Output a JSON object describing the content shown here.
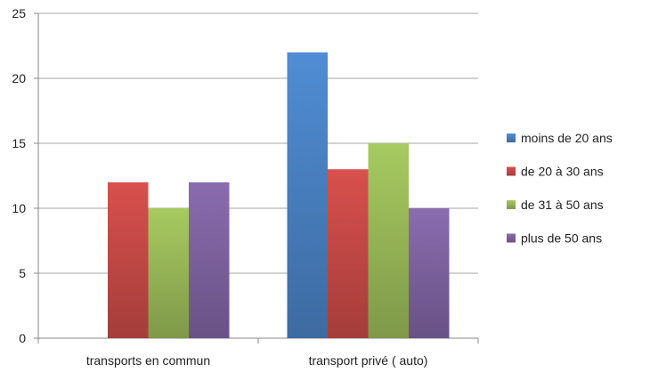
{
  "chart_data": {
    "type": "bar",
    "categories": [
      "transports en commun",
      "transport privé ( auto)"
    ],
    "series": [
      {
        "name": "moins de 20 ans",
        "color": "#4a83c4",
        "values": [
          0,
          22
        ]
      },
      {
        "name": "de 20 à 30 ans",
        "color": "#c84a47",
        "values": [
          12,
          13
        ]
      },
      {
        "name": "de 31 à 50 ans",
        "color": "#9bbb59",
        "values": [
          10,
          15
        ]
      },
      {
        "name": "plus de 50 ans",
        "color": "#8064a2",
        "values": [
          12,
          10
        ]
      }
    ],
    "yticks": [
      0,
      5,
      10,
      15,
      20,
      25
    ],
    "ylim": [
      0,
      25
    ],
    "grid": true,
    "legend_position": "right",
    "title": "",
    "xlabel": "",
    "ylabel": ""
  }
}
